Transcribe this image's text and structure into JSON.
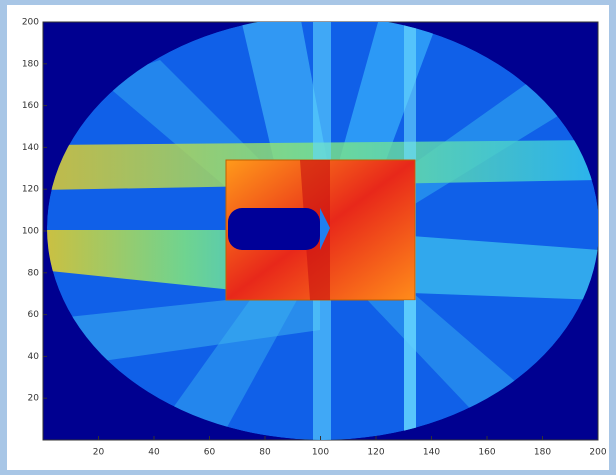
{
  "chart_data": {
    "type": "image",
    "xlim": [
      0,
      200
    ],
    "ylim": [
      0,
      200
    ],
    "xticks": [
      20,
      40,
      60,
      80,
      100,
      120,
      140,
      160,
      180,
      200
    ],
    "yticks": [
      20,
      40,
      60,
      80,
      100,
      120,
      140,
      160,
      180,
      200
    ]
  }
}
